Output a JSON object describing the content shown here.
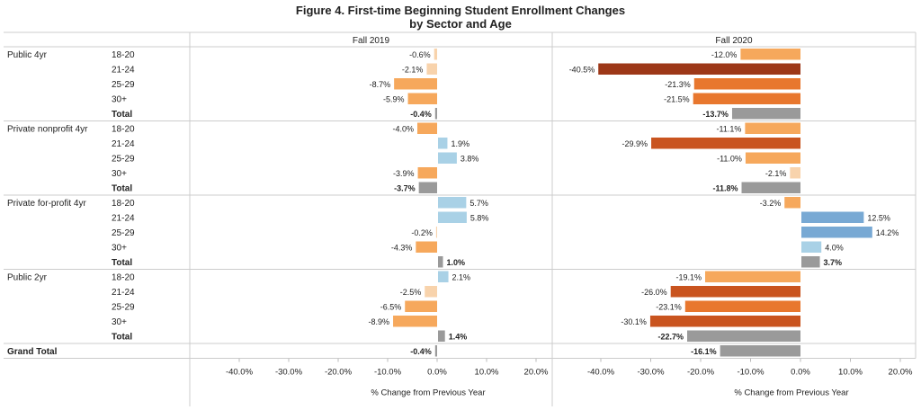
{
  "chart_data": {
    "type": "bar",
    "title": "Figure 4. First-time Beginning Student Enrollment Changes",
    "subtitle": "by Sector and Age",
    "panels": [
      "Fall 2019",
      "Fall 2020"
    ],
    "xlabel": "% Change from Previous Year",
    "xlim": [
      -50,
      22
    ],
    "xticks": [
      -40,
      -30,
      -20,
      -10,
      0,
      10,
      20
    ],
    "xtick_labels": [
      "-40.0%",
      "-30.0%",
      "-20.0%",
      "-10.0%",
      "0.0%",
      "10.0%",
      "20.0%"
    ],
    "grid": false,
    "groups": [
      {
        "sector": "Public 4yr",
        "rows": [
          {
            "age": "18-20",
            "fall2019": -0.6,
            "fall2019_label": "-0.6%",
            "fall2020": -12.0,
            "fall2020_label": "-12.0%"
          },
          {
            "age": "21-24",
            "fall2019": -2.1,
            "fall2019_label": "-2.1%",
            "fall2020": -40.5,
            "fall2020_label": "-40.5%"
          },
          {
            "age": "25-29",
            "fall2019": -8.7,
            "fall2019_label": "-8.7%",
            "fall2020": -21.3,
            "fall2020_label": "-21.3%"
          },
          {
            "age": "30+",
            "fall2019": -5.9,
            "fall2019_label": "-5.9%",
            "fall2020": -21.5,
            "fall2020_label": "-21.5%"
          },
          {
            "age": "Total",
            "total": true,
            "fall2019": -0.4,
            "fall2019_label": "-0.4%",
            "fall2020": -13.7,
            "fall2020_label": "-13.7%"
          }
        ]
      },
      {
        "sector": "Private nonprofit 4yr",
        "rows": [
          {
            "age": "18-20",
            "fall2019": -4.0,
            "fall2019_label": "-4.0%",
            "fall2020": -11.1,
            "fall2020_label": "-11.1%"
          },
          {
            "age": "21-24",
            "fall2019": 1.9,
            "fall2019_label": "1.9%",
            "fall2020": -29.9,
            "fall2020_label": "-29.9%"
          },
          {
            "age": "25-29",
            "fall2019": 3.8,
            "fall2019_label": "3.8%",
            "fall2020": -11.0,
            "fall2020_label": "-11.0%"
          },
          {
            "age": "30+",
            "fall2019": -3.9,
            "fall2019_label": "-3.9%",
            "fall2020": -2.1,
            "fall2020_label": "-2.1%"
          },
          {
            "age": "Total",
            "total": true,
            "fall2019": -3.7,
            "fall2019_label": "-3.7%",
            "fall2020": -11.8,
            "fall2020_label": "-11.8%"
          }
        ]
      },
      {
        "sector": "Private for-profit 4yr",
        "rows": [
          {
            "age": "18-20",
            "fall2019": 5.7,
            "fall2019_label": "5.7%",
            "fall2020": -3.2,
            "fall2020_label": "-3.2%"
          },
          {
            "age": "21-24",
            "fall2019": 5.8,
            "fall2019_label": "5.8%",
            "fall2020": 12.5,
            "fall2020_label": "12.5%"
          },
          {
            "age": "25-29",
            "fall2019": -0.2,
            "fall2019_label": "-0.2%",
            "fall2020": 14.2,
            "fall2020_label": "14.2%"
          },
          {
            "age": "30+",
            "fall2019": -4.3,
            "fall2019_label": "-4.3%",
            "fall2020": 4.0,
            "fall2020_label": "4.0%"
          },
          {
            "age": "Total",
            "total": true,
            "fall2019": 1.0,
            "fall2019_label": "1.0%",
            "fall2020": 3.7,
            "fall2020_label": "3.7%"
          }
        ]
      },
      {
        "sector": "Public 2yr",
        "rows": [
          {
            "age": "18-20",
            "fall2019": 2.1,
            "fall2019_label": "2.1%",
            "fall2020": -19.1,
            "fall2020_label": "-19.1%"
          },
          {
            "age": "21-24",
            "fall2019": -2.5,
            "fall2019_label": "-2.5%",
            "fall2020": -26.0,
            "fall2020_label": "-26.0%"
          },
          {
            "age": "25-29",
            "fall2019": -6.5,
            "fall2019_label": "-6.5%",
            "fall2020": -23.1,
            "fall2020_label": "-23.1%"
          },
          {
            "age": "30+",
            "fall2019": -8.9,
            "fall2019_label": "-8.9%",
            "fall2020": -30.1,
            "fall2020_label": "-30.1%"
          },
          {
            "age": "Total",
            "total": true,
            "fall2019": 1.4,
            "fall2019_label": "1.4%",
            "fall2020": -22.7,
            "fall2020_label": "-22.7%"
          }
        ]
      }
    ],
    "grand_total": {
      "label": "Grand Total",
      "fall2019": -0.4,
      "fall2019_label": "-0.4%",
      "fall2020": -16.1,
      "fall2020_label": "-16.1%"
    },
    "colors": {
      "total": "#9a9a9a",
      "neg_very_light": "#f8d3ac",
      "neg_light": "#f6a85c",
      "neg_mid": "#e8772e",
      "neg_dark": "#c9541f",
      "neg_darkest": "#9d3818",
      "pos_light": "#a9d1e6",
      "pos_mid": "#78a9d4"
    }
  }
}
